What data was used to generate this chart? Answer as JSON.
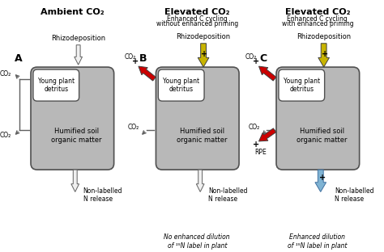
{
  "title_A": "Ambient CO₂",
  "title_B": "Elevated CO₂",
  "subtitle_B1": "Enhanced C cycling",
  "subtitle_B2": "without enhanced priming",
  "title_C": "Elevated CO₂",
  "subtitle_C1": "Enhanced C cycling",
  "subtitle_C2": "with enhanced priming",
  "label_rhizodeposition": "Rhizodeposition",
  "label_young": "Young plant\ndetritus",
  "label_humified": "Humified soil\norganic matter",
  "label_co2": "CO₂",
  "label_n_release": "Non-labelled\nN release",
  "label_rpe": "RPE",
  "label_A": "A",
  "label_B": "B",
  "label_C": "C",
  "caption_B": "No enhanced dilution\nof ¹⁵N label in plant",
  "caption_C": "Enhanced dilution\nof ¹⁵N label in plant",
  "bg_color": "#ffffff",
  "box_fill": "#b8b8b8",
  "young_fill": "#ffffff",
  "arrow_yellow": "#c8b400",
  "arrow_red": "#cc0000",
  "arrow_blue": "#7fb3d3",
  "arrow_white_fc": "#f0f0f0",
  "box_edge": "#505050"
}
